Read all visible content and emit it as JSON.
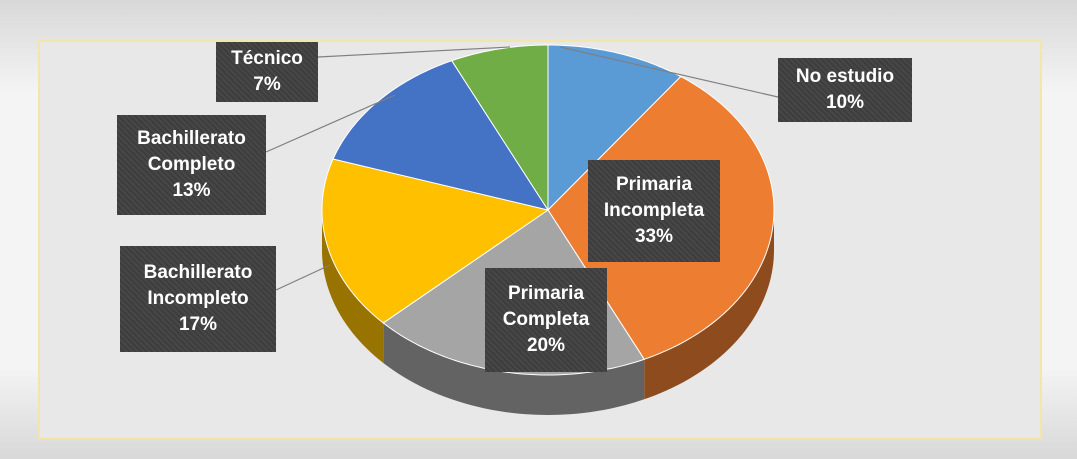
{
  "chart_data": {
    "type": "pie",
    "categories": [
      "No estudio",
      "Primaria Incompleta",
      "Primaria Completa",
      "Bachillerato Incompleto",
      "Bachillerato Completo",
      "Técnico"
    ],
    "values": [
      10,
      33,
      20,
      17,
      13,
      7
    ],
    "value_labels": [
      "10%",
      "33%",
      "20%",
      "17%",
      "13%",
      "7%"
    ],
    "colors": [
      "#5b9bd5",
      "#ed7d31",
      "#a5a5a5",
      "#ffc000",
      "#4472c4",
      "#70ad47"
    ]
  }
}
